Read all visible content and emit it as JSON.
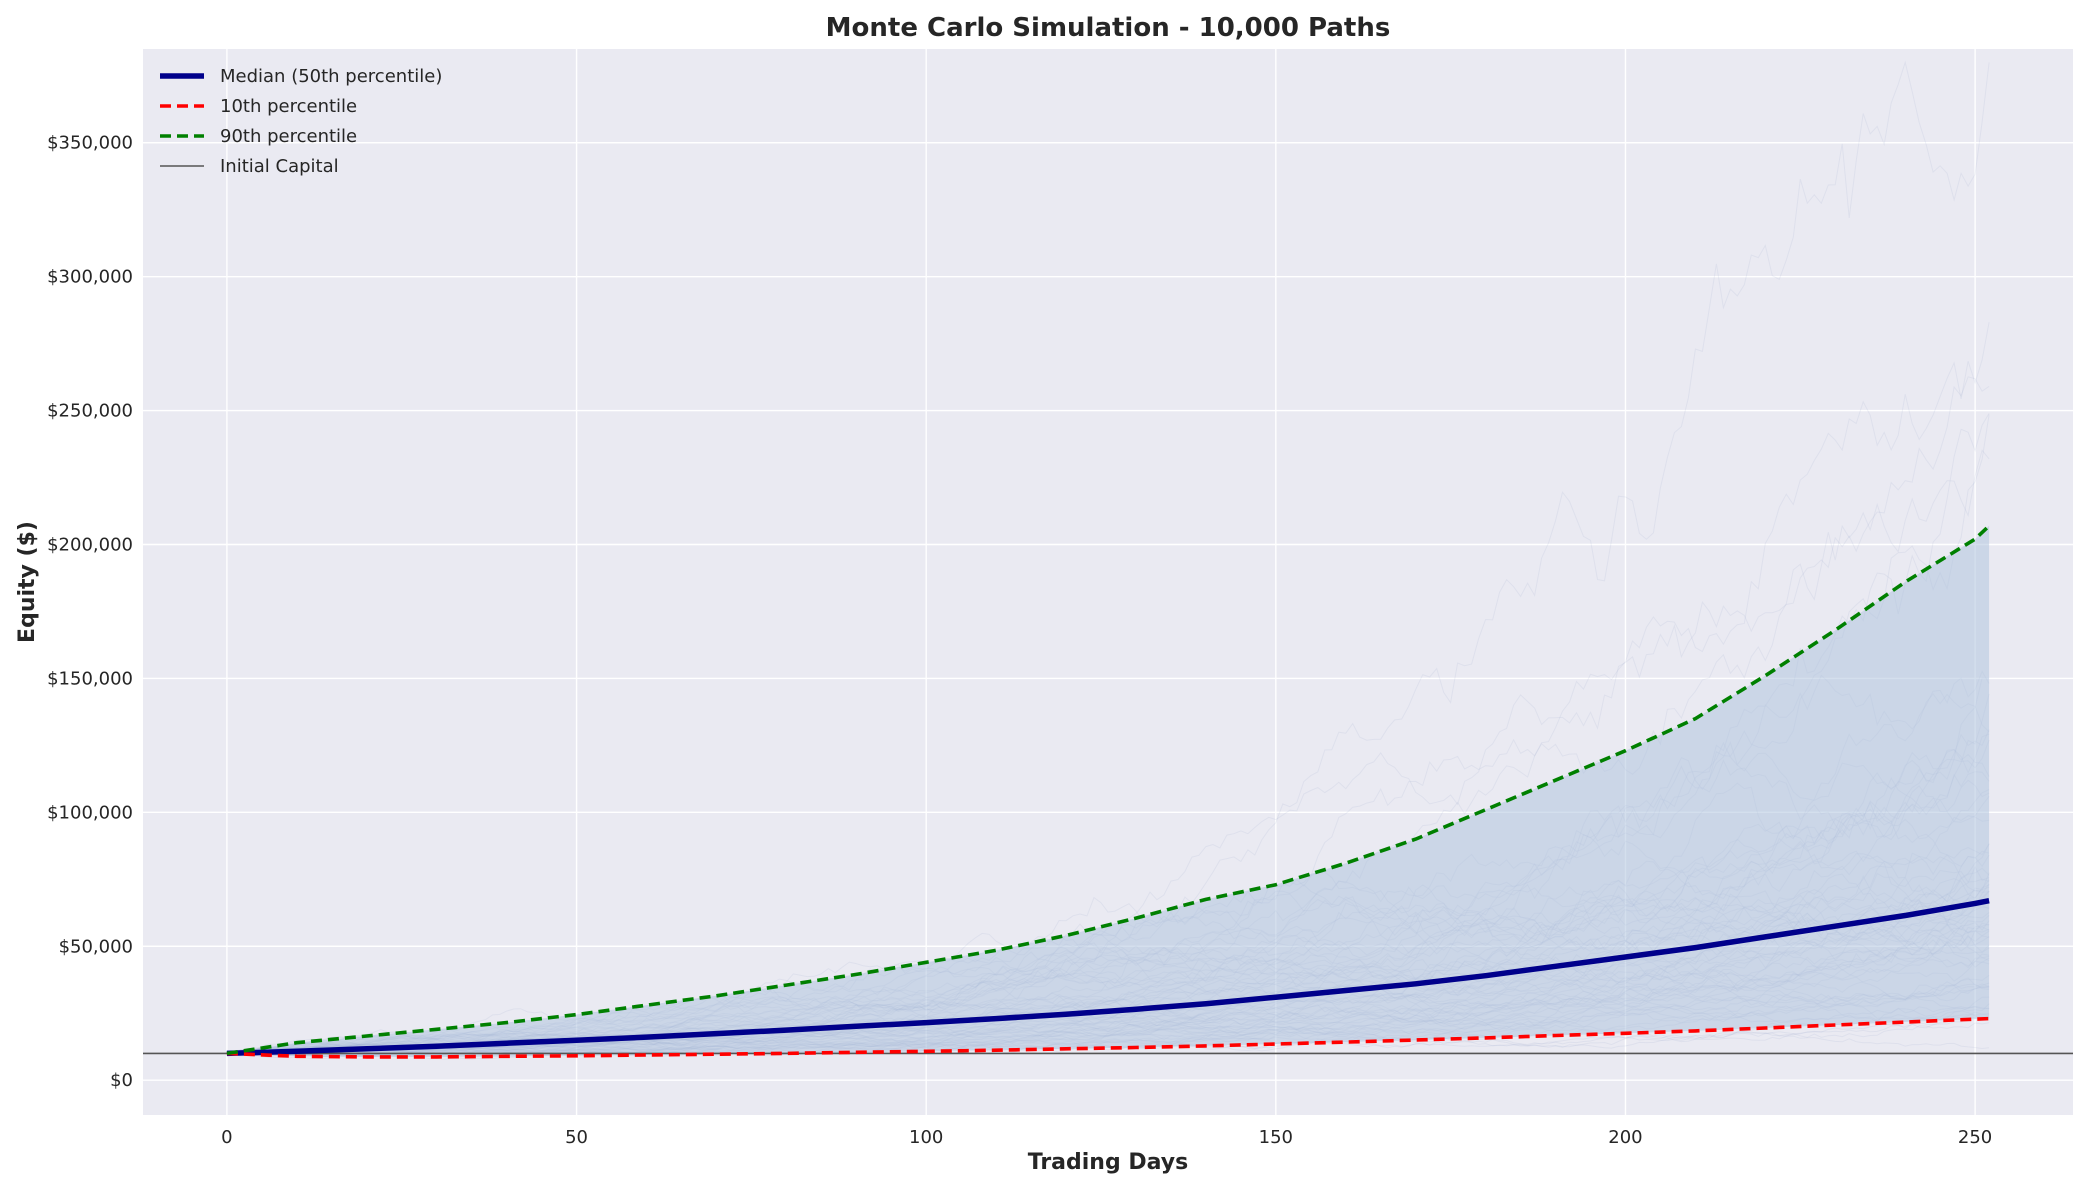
{
  "chart_data": {
    "type": "line",
    "title": "Monte Carlo Simulation - 10,000 Paths",
    "xlabel": "Trading Days",
    "ylabel": "Equity ($)",
    "xlim": [
      -12,
      264
    ],
    "ylim": [
      -13000,
      385000
    ],
    "x_ticks": [
      0,
      50,
      100,
      150,
      200,
      250
    ],
    "x_tick_labels": [
      "0",
      "50",
      "100",
      "150",
      "200",
      "250"
    ],
    "y_ticks": [
      0,
      50000,
      100000,
      150000,
      200000,
      250000,
      300000,
      350000
    ],
    "y_tick_labels": [
      "$0",
      "$50,000",
      "$100,000",
      "$150,000",
      "$200,000",
      "$250,000",
      "$300,000",
      "$350,000"
    ],
    "grid": true,
    "legend_position": "top-left",
    "background_color": "#eaeaf2",
    "band": {
      "between": [
        "10th percentile",
        "90th percentile"
      ],
      "color": "#b0c4de"
    },
    "series": [
      {
        "name": "Median (50th percentile)",
        "style": "solid",
        "color": "#00008b",
        "x": [
          0,
          10,
          20,
          30,
          40,
          50,
          60,
          70,
          80,
          90,
          100,
          110,
          120,
          130,
          140,
          150,
          160,
          170,
          180,
          190,
          200,
          210,
          220,
          230,
          240,
          250,
          252
        ],
        "y": [
          10000,
          10800,
          11700,
          12700,
          13800,
          14900,
          16100,
          17400,
          18700,
          20100,
          21500,
          23000,
          24600,
          26500,
          28500,
          31000,
          33500,
          36000,
          39000,
          42500,
          46000,
          49500,
          53500,
          57500,
          61500,
          66000,
          67000
        ]
      },
      {
        "name": "10th percentile",
        "style": "dashed",
        "color": "#ff0000",
        "x": [
          0,
          10,
          20,
          30,
          40,
          50,
          60,
          70,
          80,
          90,
          100,
          110,
          120,
          130,
          140,
          150,
          160,
          170,
          180,
          190,
          200,
          210,
          220,
          230,
          240,
          250,
          252
        ],
        "y": [
          10000,
          8900,
          8700,
          8700,
          8900,
          9100,
          9400,
          9700,
          10000,
          10400,
          10800,
          11200,
          11700,
          12200,
          12800,
          13500,
          14200,
          15000,
          15800,
          16700,
          17500,
          18400,
          19500,
          20600,
          21700,
          22800,
          23000
        ]
      },
      {
        "name": "90th percentile",
        "style": "dashed",
        "color": "#008000",
        "x": [
          0,
          10,
          20,
          30,
          40,
          50,
          60,
          70,
          80,
          90,
          100,
          110,
          120,
          130,
          140,
          150,
          160,
          170,
          180,
          190,
          200,
          210,
          220,
          230,
          240,
          250,
          252
        ],
        "y": [
          10000,
          14000,
          16500,
          19000,
          21500,
          24500,
          28000,
          31500,
          35500,
          39500,
          44000,
          48500,
          54000,
          60500,
          67500,
          73000,
          81000,
          90000,
          101000,
          112000,
          123000,
          135000,
          151000,
          168000,
          186000,
          202000,
          207000
        ]
      },
      {
        "name": "Initial Capital",
        "style": "hline",
        "color": "#555555",
        "y": 10000
      }
    ]
  }
}
